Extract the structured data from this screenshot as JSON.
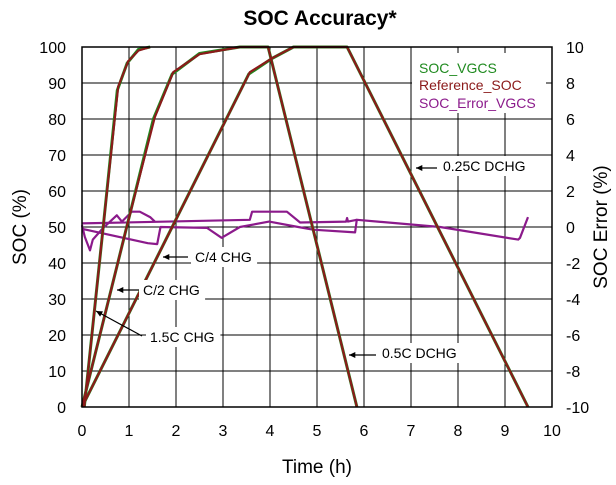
{
  "chart_data": {
    "type": "line",
    "title": "SOC Accuracy*",
    "xlabel": "Time (h)",
    "ylabel": "SOC (%)",
    "y2label": "SOC Error (%)",
    "xlim": [
      0,
      10
    ],
    "ylim": [
      0,
      100
    ],
    "y2lim": [
      -10,
      10
    ],
    "xticks": [
      "0",
      "1",
      "2",
      "3",
      "4",
      "5",
      "6",
      "7",
      "8",
      "9",
      "10"
    ],
    "yticks": [
      "0",
      "10",
      "20",
      "30",
      "40",
      "50",
      "60",
      "70",
      "80",
      "90",
      "100"
    ],
    "y2ticks": [
      "-10",
      "-8",
      "-6",
      "-4",
      "-2",
      "0",
      "2",
      "4",
      "6",
      "8",
      "10"
    ],
    "grid": true,
    "legend_position": "top-right",
    "legend": [
      {
        "name": "SOC_VGCS",
        "color": "#1f8a1f"
      },
      {
        "name": "Reference_SOC",
        "color": "#8b1a1a"
      },
      {
        "name": "SOC_Error_VGCS",
        "color": "#8b1a8b"
      }
    ],
    "series": [
      {
        "name": "Reference_SOC",
        "axis": "left",
        "color": "#8b1a1a",
        "segments": [
          [
            [
              0.05,
              0
            ],
            [
              0.45,
              50
            ],
            [
              0.77,
              89
            ],
            [
              0.98,
              96
            ],
            [
              1.2,
              99
            ],
            [
              1.45,
              100
            ]
          ],
          [
            [
              0,
              0
            ],
            [
              0.95,
              50
            ],
            [
              1.55,
              80.5
            ],
            [
              1.94,
              93
            ],
            [
              2.5,
              98
            ],
            [
              3.36,
              100
            ],
            [
              3.96,
              100
            ],
            [
              5.85,
              0
            ]
          ],
          [
            [
              0,
              0
            ],
            [
              3.57,
              93
            ],
            [
              4.06,
              97
            ],
            [
              4.5,
              100
            ],
            [
              5.64,
              100
            ],
            [
              9.49,
              0
            ]
          ]
        ]
      },
      {
        "name": "SOC_VGCS",
        "axis": "left",
        "color": "#1f8a1f",
        "segments": [
          [
            [
              0.05,
              0
            ],
            [
              0.45,
              50
            ],
            [
              0.75,
              88
            ],
            [
              0.96,
              95.5
            ],
            [
              1.2,
              99.3
            ],
            [
              1.45,
              100
            ]
          ],
          [
            [
              0,
              0
            ],
            [
              0.95,
              50
            ],
            [
              1.52,
              80
            ],
            [
              1.92,
              92.5
            ],
            [
              2.5,
              98.2
            ],
            [
              3.36,
              100
            ],
            [
              3.96,
              100
            ],
            [
              5.85,
              0
            ]
          ],
          [
            [
              0,
              0
            ],
            [
              3.55,
              92.5
            ],
            [
              4.04,
              96.8
            ],
            [
              4.5,
              100
            ],
            [
              5.64,
              100
            ],
            [
              9.49,
              0
            ]
          ]
        ]
      },
      {
        "name": "SOC_Error_VGCS",
        "axis": "right",
        "color": "#8b1a8b",
        "segments": [
          [
            [
              0,
              0.1
            ],
            [
              0.06,
              -0.55
            ],
            [
              0.17,
              -1.3
            ],
            [
              0.23,
              -0.7
            ],
            [
              0.45,
              -0.05
            ],
            [
              0.74,
              0.65
            ],
            [
              0.85,
              0.3
            ],
            [
              1.06,
              0.85
            ],
            [
              1.23,
              0.85
            ],
            [
              1.45,
              0.55
            ],
            [
              1.55,
              0.3
            ]
          ],
          [
            [
              0,
              -0.1
            ],
            [
              1.4,
              -0.9
            ],
            [
              1.6,
              -0.95
            ],
            [
              1.67,
              0
            ],
            [
              2.66,
              -0.05
            ],
            [
              2.97,
              -0.6
            ],
            [
              3.36,
              0
            ],
            [
              3.98,
              0.3
            ],
            [
              4.6,
              0
            ],
            [
              4.92,
              -0.15
            ],
            [
              5.81,
              -0.3
            ],
            [
              5.85,
              0.45
            ]
          ],
          [
            [
              0,
              0.2
            ],
            [
              3.57,
              0.4
            ],
            [
              3.62,
              0.85
            ],
            [
              4.36,
              0.85
            ],
            [
              4.64,
              0.25
            ],
            [
              5.62,
              0.3
            ],
            [
              5.64,
              0.5
            ],
            [
              5.66,
              0.3
            ],
            [
              5.85,
              0.4
            ],
            [
              7.62,
              0
            ],
            [
              9.28,
              -0.7
            ],
            [
              9.32,
              -0.6
            ],
            [
              9.49,
              0.55
            ]
          ]
        ]
      }
    ],
    "annotations": [
      {
        "text": "C/4 CHG"
      },
      {
        "text": "C/2 CHG"
      },
      {
        "text": "1.5C CHG"
      },
      {
        "text": "0.25C DCHG"
      },
      {
        "text": "0.5C DCHG"
      }
    ]
  }
}
